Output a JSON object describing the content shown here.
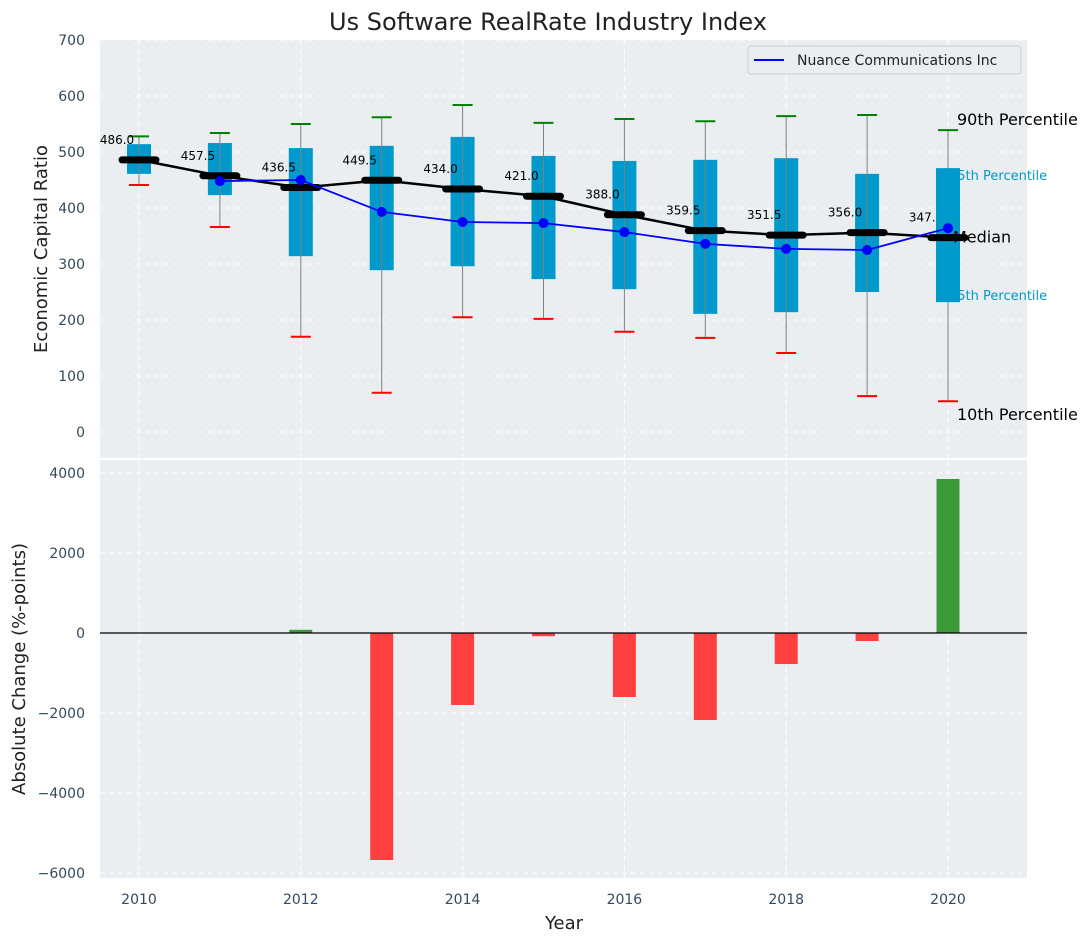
{
  "chart_data": [
    {
      "type": "box",
      "title": "Us Software RealRate Industry Index",
      "xlabel": "",
      "ylabel": "Economic Capital Ratio",
      "ylim": [
        -50,
        700
      ],
      "yticks": [
        0,
        100,
        200,
        300,
        400,
        500,
        600,
        700
      ],
      "grid": true,
      "legend": {
        "placement": "top-right",
        "entries": [
          {
            "label": "Nuance Communications Inc",
            "color": "#0000ff"
          }
        ]
      },
      "x": [
        2010,
        2011,
        2012,
        2013,
        2014,
        2015,
        2016,
        2017,
        2018,
        2019,
        2020
      ],
      "p10": [
        441,
        366,
        170,
        70,
        205,
        202,
        179,
        168,
        141,
        64,
        55
      ],
      "p25": [
        461,
        423,
        314,
        289,
        296,
        273,
        255,
        211,
        214,
        250,
        232
      ],
      "median": [
        486.0,
        457.5,
        436.5,
        449.5,
        434.0,
        421.0,
        388.0,
        359.5,
        351.5,
        356.0,
        347.0
      ],
      "median_labels": [
        "486.0",
        "457.5",
        "436.5",
        "449.5",
        "434.0",
        "421.0",
        "388.0",
        "359.5",
        "351.5",
        "356.0",
        "347.0"
      ],
      "p75": [
        514,
        516,
        507,
        511,
        527,
        493,
        484,
        486,
        489,
        461,
        471
      ],
      "p90": [
        528,
        534,
        550,
        562,
        584,
        552,
        559,
        555,
        564,
        566,
        539
      ],
      "series": [
        {
          "name": "Nuance Communications Inc",
          "x": [
            2011,
            2012,
            2013,
            2014,
            2015,
            2016,
            2017,
            2018,
            2019,
            2020
          ],
          "values": [
            448,
            450,
            393,
            375,
            373,
            357,
            336,
            327,
            325,
            364
          ]
        }
      ],
      "annotations": [
        {
          "text": "90th Percentile",
          "color": "#000000"
        },
        {
          "text": "75th Percentile",
          "color": "#0099cc"
        },
        {
          "text": "Median",
          "color": "#000000"
        },
        {
          "text": "25th Percentile",
          "color": "#0099cc"
        },
        {
          "text": "10th Percentile",
          "color": "#000000"
        }
      ],
      "colors": {
        "box": "#0099cc",
        "median": "#000000",
        "p90_cap": "#008000",
        "p10_cap": "#ff0000",
        "whisker": "#808080",
        "company": "#0000ff"
      }
    },
    {
      "type": "bar",
      "xlabel": "Year",
      "ylabel": "Absolute Change (%-points)",
      "ylim": [
        -6100,
        4400
      ],
      "yticks": [
        -6000,
        -4000,
        -2000,
        0,
        2000,
        4000
      ],
      "xticks": [
        2010,
        2012,
        2014,
        2016,
        2018,
        2020
      ],
      "xlim": [
        2009.5,
        2021
      ],
      "grid": true,
      "categories": [
        2012,
        2013,
        2014,
        2015,
        2016,
        2017,
        2018,
        2019,
        2020
      ],
      "values": [
        80,
        -5675,
        -1800,
        -80,
        -1600,
        -2175,
        -775,
        -200,
        3850
      ],
      "colors": {
        "positive": "#3a9a3a",
        "negative": "#ff4040"
      }
    }
  ]
}
